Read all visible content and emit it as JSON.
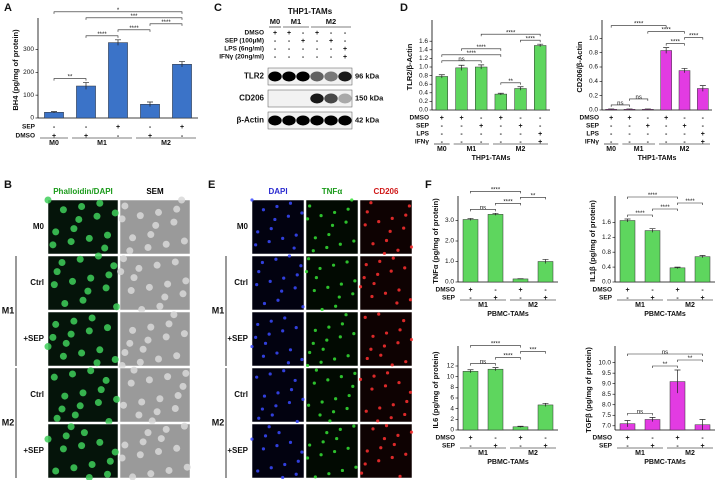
{
  "chart_data": [
    {
      "type": "bar",
      "label": "A",
      "ylabel": "BH4 (pg/mg of protein)",
      "color": "#3b73c8",
      "values": [
        25,
        140,
        330,
        60,
        235
      ],
      "errors": [
        3,
        15,
        12,
        10,
        12
      ],
      "ylim": [
        0,
        420
      ],
      "yticks": [
        0,
        100,
        200,
        300
      ],
      "conditions": [
        {
          "name": "SEP",
          "marks": [
            "-",
            "-",
            "+",
            "-",
            "+"
          ]
        },
        {
          "name": "DMSO",
          "marks": [
            "+",
            "+",
            "-",
            "+",
            "-"
          ]
        }
      ],
      "groups": [
        {
          "label": "M0",
          "count": 1
        },
        {
          "label": "M1",
          "count": 2
        },
        {
          "label": "M2",
          "count": 2
        }
      ],
      "annotations": [
        {
          "text": "**",
          "bars": [
            0,
            1
          ]
        },
        {
          "text": "****",
          "bars": [
            1,
            2
          ]
        },
        {
          "text": "****",
          "bars": [
            2,
            3
          ]
        },
        {
          "text": "****",
          "bars": [
            3,
            4
          ]
        },
        {
          "text": "***",
          "bars": [
            1,
            4
          ]
        },
        {
          "text": "*",
          "bars": [
            0,
            4
          ]
        }
      ]
    },
    {
      "type": "bar",
      "label": "D",
      "ylabel": "TLR2/β-Actin",
      "color": "#5ed65e",
      "xlabel": "THP1-TAMs",
      "values": [
        0.78,
        0.98,
        1.0,
        0.37,
        0.5,
        1.5
      ],
      "errors": [
        0.04,
        0.06,
        0.05,
        0.02,
        0.04,
        0.03
      ],
      "ylim": [
        0,
        2.0
      ],
      "yticks": [
        {
          "value": 0,
          "label": "0.0"
        },
        0.2,
        0.4,
        0.6,
        0.8,
        {
          "value": 1,
          "label": "1.0"
        },
        1.2,
        1.4,
        1.6
      ],
      "conditions": [
        {
          "name": "DMSO",
          "marks": [
            "+",
            "+",
            "-",
            "+",
            "-",
            "-"
          ]
        },
        {
          "name": "SEP",
          "marks": [
            "-",
            "-",
            "+",
            "-",
            "+",
            "-"
          ]
        },
        {
          "name": "LPS",
          "marks": [
            "-",
            "-",
            "-",
            "-",
            "-",
            "+"
          ]
        },
        {
          "name": "IFNγ",
          "marks": [
            "-",
            "-",
            "-",
            "-",
            "-",
            "+"
          ]
        }
      ],
      "groups": [
        {
          "label": "M0",
          "count": 1
        },
        {
          "label": "M1",
          "count": 2
        },
        {
          "label": "M2",
          "count": 3
        }
      ],
      "annotations": [
        {
          "text": "**",
          "bars": [
            3,
            4
          ]
        },
        {
          "text": "****",
          "bars": [
            4,
            5
          ]
        },
        {
          "text": "ns",
          "bars": [
            0,
            2
          ]
        },
        {
          "text": "****",
          "bars": [
            0,
            3
          ]
        },
        {
          "text": "****",
          "bars": [
            1,
            3
          ]
        },
        {
          "text": "****",
          "bars": [
            2,
            5
          ]
        }
      ]
    },
    {
      "type": "bar",
      "ylabel": "CD206/β-Actin",
      "color": "#e23be2",
      "xlabel": "THP1-TAMs",
      "values": [
        0.01,
        0.01,
        0.01,
        0.83,
        0.55,
        0.3
      ],
      "errors": [
        0.005,
        0.005,
        0.005,
        0.04,
        0.03,
        0.04
      ],
      "ylim": [
        0,
        1.2
      ],
      "yticks": [
        {
          "value": 0,
          "label": "0.0"
        },
        0.2,
        0.4,
        0.6,
        0.8,
        {
          "value": 1,
          "label": "1.0"
        }
      ],
      "conditions": [
        {
          "name": "DMSO",
          "marks": [
            "+",
            "+",
            "-",
            "+",
            "-",
            "-"
          ]
        },
        {
          "name": "SEP",
          "marks": [
            "-",
            "-",
            "+",
            "-",
            "+",
            "-"
          ]
        },
        {
          "name": "LPS",
          "marks": [
            "-",
            "-",
            "-",
            "-",
            "-",
            "+"
          ]
        },
        {
          "name": "IFNγ",
          "marks": [
            "-",
            "-",
            "-",
            "-",
            "-",
            "+"
          ]
        }
      ],
      "groups": [
        {
          "label": "M0",
          "count": 1
        },
        {
          "label": "M1",
          "count": 2
        },
        {
          "label": "M2",
          "count": 3
        }
      ],
      "annotations": [
        {
          "text": "ns",
          "bars": [
            0,
            1
          ]
        },
        {
          "text": "ns",
          "bars": [
            1,
            2
          ]
        },
        {
          "text": "****",
          "bars": [
            3,
            4
          ]
        },
        {
          "text": "****",
          "bars": [
            4,
            5
          ]
        },
        {
          "text": "****",
          "bars": [
            2,
            4
          ]
        },
        {
          "text": "****",
          "bars": [
            0,
            3
          ]
        }
      ]
    },
    {
      "type": "bar",
      "label": "F",
      "ylabel": "TNFα (pg/mg of protein)",
      "color": "#5ed65e",
      "xlabel": "PBMC-TAMs",
      "values": [
        3.05,
        3.3,
        0.15,
        1.0
      ],
      "errors": [
        0.05,
        0.05,
        0.01,
        0.1
      ],
      "ylim": [
        0,
        4
      ],
      "yticks": [
        {
          "value": 0,
          "label": "0.0"
        },
        {
          "value": 1,
          "label": "1.0"
        },
        {
          "value": 2,
          "label": "2.0"
        },
        {
          "value": 3,
          "label": "3.0"
        }
      ],
      "conditions": [
        {
          "name": "DMSO",
          "marks": [
            "+",
            "-",
            "+",
            "-"
          ]
        },
        {
          "name": "SEP",
          "marks": [
            "-",
            "+",
            "-",
            "+"
          ]
        }
      ],
      "groups": [
        {
          "label": "M1",
          "count": 2
        },
        {
          "label": "M2",
          "count": 2
        }
      ],
      "annotations": [
        {
          "text": "ns",
          "bars": [
            0,
            1
          ]
        },
        {
          "text": "****",
          "bars": [
            1,
            2
          ]
        },
        {
          "text": "**",
          "bars": [
            2,
            3
          ]
        },
        {
          "text": "****",
          "bars": [
            0,
            2
          ]
        }
      ]
    },
    {
      "type": "bar",
      "ylabel": "IL1β (pg/mg of protein)",
      "color": "#5ed65e",
      "xlabel": "PBMC-TAMs",
      "values": [
        1.65,
        1.38,
        0.38,
        0.68
      ],
      "errors": [
        0.04,
        0.05,
        0.02,
        0.03
      ],
      "ylim": [
        0,
        2.2
      ],
      "yticks": [
        {
          "value": 0,
          "label": "0.0"
        },
        0.4,
        0.8,
        1.2,
        1.6
      ],
      "conditions": [
        {
          "name": "DMSO",
          "marks": [
            "+",
            "-",
            "+",
            "-"
          ]
        },
        {
          "name": "SEP",
          "marks": [
            "-",
            "+",
            "-",
            "+"
          ]
        }
      ],
      "groups": [
        {
          "label": "M1",
          "count": 2
        },
        {
          "label": "M2",
          "count": 2
        }
      ],
      "annotations": [
        {
          "text": "****",
          "bars": [
            0,
            1
          ]
        },
        {
          "text": "****",
          "bars": [
            1,
            2
          ]
        },
        {
          "text": "****",
          "bars": [
            2,
            3
          ]
        },
        {
          "text": "****",
          "bars": [
            0,
            2
          ]
        }
      ]
    },
    {
      "type": "bar",
      "ylabel": "IL6 (pg/mg of protein)",
      "color": "#5ed65e",
      "xlabel": "PBMC-TAMs",
      "values": [
        11,
        11.4,
        0.6,
        4.7
      ],
      "errors": [
        0.3,
        0.3,
        0.1,
        0.3
      ],
      "ylim": [
        0,
        15
      ],
      "yticks": [
        0,
        2,
        4,
        6,
        8,
        10,
        12
      ],
      "conditions": [
        {
          "name": "DMSO",
          "marks": [
            "+",
            "-",
            "+",
            "-"
          ]
        },
        {
          "name": "SEP",
          "marks": [
            "-",
            "+",
            "-",
            "+"
          ]
        }
      ],
      "groups": [
        {
          "label": "M1",
          "count": 2
        },
        {
          "label": "M2",
          "count": 2
        }
      ],
      "annotations": [
        {
          "text": "ns",
          "bars": [
            0,
            1
          ]
        },
        {
          "text": "****",
          "bars": [
            1,
            2
          ]
        },
        {
          "text": "***",
          "bars": [
            2,
            3
          ]
        },
        {
          "text": "****",
          "bars": [
            0,
            2
          ]
        }
      ]
    },
    {
      "type": "bar",
      "ylabel": "TGFβ (pg/mg of protein)",
      "color": "#e23be2",
      "xlabel": "PBMC-TAMs",
      "values": [
        7.1,
        7.3,
        9.1,
        7.05
      ],
      "errors": [
        0.15,
        0.1,
        0.55,
        0.25
      ],
      "ylim": [
        6.8,
        10.6
      ],
      "yticks": [
        {
          "value": 7,
          "label": "7.0"
        },
        7.5,
        {
          "value": 8,
          "label": "8.0"
        },
        8.5,
        {
          "value": 9,
          "label": "9.0"
        },
        9.5,
        {
          "value": 10,
          "label": "10.0"
        }
      ],
      "conditions": [
        {
          "name": "DMSO",
          "marks": [
            "+",
            "-",
            "+",
            "-"
          ]
        },
        {
          "name": "SEP",
          "marks": [
            "-",
            "+",
            "-",
            "+"
          ]
        }
      ],
      "groups": [
        {
          "label": "M1",
          "count": 2
        },
        {
          "label": "M2",
          "count": 2
        }
      ],
      "annotations": [
        {
          "text": "ns",
          "bars": [
            0,
            1
          ]
        },
        {
          "text": "**",
          "bars": [
            1,
            2
          ]
        },
        {
          "text": "**",
          "bars": [
            2,
            3
          ]
        },
        {
          "text": "ns",
          "bars": [
            0,
            3
          ]
        }
      ]
    }
  ],
  "panel_b": {
    "label": "B",
    "columns": [
      {
        "text": "Phalloidin/DAPI",
        "color": "#1a9a1a"
      },
      {
        "text": "SEM",
        "color": "#000000"
      }
    ],
    "rows": [
      "M0",
      "Ctrl",
      "+SEP",
      "Ctrl",
      "+SEP"
    ],
    "groups": [
      {
        "label": "M1",
        "count": 2
      },
      {
        "label": "M2",
        "count": 2
      }
    ]
  },
  "panel_c": {
    "label": "C",
    "title": "THP1-TAMs",
    "groups": [
      {
        "label": "M0",
        "count": 1
      },
      {
        "label": "M1",
        "count": 2
      },
      {
        "label": "M2",
        "count": 3
      }
    ],
    "conditions": [
      {
        "name": "DMSO",
        "marks": [
          "+",
          "+",
          "-",
          "+",
          "-",
          "-"
        ]
      },
      {
        "name": "SEP (100μM)",
        "marks": [
          "-",
          "-",
          "+",
          "-",
          "+",
          "-"
        ]
      },
      {
        "name": "LPS (6ng/ml)",
        "marks": [
          "-",
          "-",
          "-",
          "-",
          "-",
          "+"
        ]
      },
      {
        "name": "IFNγ (20ng/ml)",
        "marks": [
          "-",
          "-",
          "-",
          "-",
          "-",
          "+"
        ]
      }
    ],
    "blots": [
      {
        "name": "TLR2",
        "size": "96 kDa",
        "intensity": [
          1,
          1,
          1,
          0.6,
          0.5,
          0.9
        ]
      },
      {
        "name": "CD206",
        "size": "150 kDa",
        "intensity": [
          0,
          0,
          0,
          0.9,
          0.7,
          0.3
        ]
      },
      {
        "name": "β-Actin",
        "size": "42 kDa",
        "intensity": [
          1,
          1,
          1,
          1,
          1,
          1
        ]
      }
    ]
  },
  "panel_e": {
    "label": "E",
    "columns": [
      {
        "text": "DAPI",
        "color": "#2a2ad0"
      },
      {
        "text": "TNFα",
        "color": "#1a9a1a"
      },
      {
        "text": "CD206",
        "color": "#d01a1a"
      }
    ],
    "rows": [
      "M0",
      "Ctrl",
      "+SEP",
      "Ctrl",
      "+SEP"
    ],
    "groups": [
      {
        "label": "M1",
        "count": 2
      },
      {
        "label": "M2",
        "count": 2
      }
    ]
  }
}
